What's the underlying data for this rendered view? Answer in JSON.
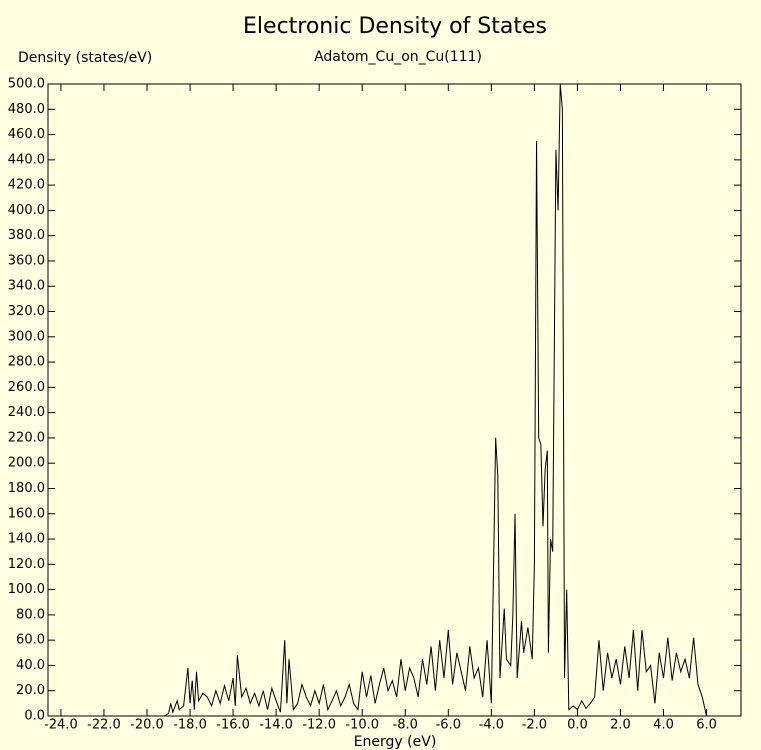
{
  "chart_data": {
    "type": "line",
    "title": "Electronic Density of States",
    "subtitle": "Adatom_Cu_on_Cu(111)",
    "y_label": "Density (states/eV)",
    "x_label": "Energy (eV)",
    "xlim": [
      -24.6,
      7.6
    ],
    "ylim": [
      0,
      500
    ],
    "xticks": [
      {
        "value": -24,
        "label": "-24.0"
      },
      {
        "value": -22,
        "label": "-22.0"
      },
      {
        "value": -20,
        "label": "-20.0"
      },
      {
        "value": -18,
        "label": "-18.0"
      },
      {
        "value": -16,
        "label": "-16.0"
      },
      {
        "value": -14,
        "label": "-14.0"
      },
      {
        "value": -12,
        "label": "-12.0"
      },
      {
        "value": -10,
        "label": "-10.0"
      },
      {
        "value": -8,
        "label": "-8.0"
      },
      {
        "value": -6,
        "label": "-6.0"
      },
      {
        "value": -4,
        "label": "-4.0"
      },
      {
        "value": -2,
        "label": "-2.0"
      },
      {
        "value": 0,
        "label": "0.0"
      },
      {
        "value": 2,
        "label": "2.0"
      },
      {
        "value": 4,
        "label": "4.0"
      },
      {
        "value": 6,
        "label": "6.0"
      }
    ],
    "yticks": [
      {
        "value": 0,
        "label": "0.0"
      },
      {
        "value": 20,
        "label": "20.0"
      },
      {
        "value": 40,
        "label": "40.0"
      },
      {
        "value": 60,
        "label": "60.0"
      },
      {
        "value": 80,
        "label": "80.0"
      },
      {
        "value": 100,
        "label": "100.0"
      },
      {
        "value": 120,
        "label": "120.0"
      },
      {
        "value": 140,
        "label": "140.0"
      },
      {
        "value": 160,
        "label": "160.0"
      },
      {
        "value": 180,
        "label": "180.0"
      },
      {
        "value": 200,
        "label": "200.0"
      },
      {
        "value": 220,
        "label": "220.0"
      },
      {
        "value": 240,
        "label": "240.0"
      },
      {
        "value": 260,
        "label": "260.0"
      },
      {
        "value": 280,
        "label": "280.0"
      },
      {
        "value": 300,
        "label": "300.0"
      },
      {
        "value": 320,
        "label": "320.0"
      },
      {
        "value": 340,
        "label": "340.0"
      },
      {
        "value": 360,
        "label": "360.0"
      },
      {
        "value": 380,
        "label": "380.0"
      },
      {
        "value": 400,
        "label": "400.0"
      },
      {
        "value": 420,
        "label": "420.0"
      },
      {
        "value": 440,
        "label": "440.0"
      },
      {
        "value": 460,
        "label": "460.0"
      },
      {
        "value": 480,
        "label": "480.0"
      },
      {
        "value": 500,
        "label": "500.0"
      }
    ],
    "grid": false,
    "x": [
      -24.5,
      -19.2,
      -19.0,
      -18.9,
      -18.8,
      -18.6,
      -18.5,
      -18.3,
      -18.1,
      -18.0,
      -17.9,
      -17.8,
      -17.7,
      -17.6,
      -17.4,
      -17.2,
      -17.0,
      -16.8,
      -16.6,
      -16.4,
      -16.2,
      -16.0,
      -15.9,
      -15.8,
      -15.6,
      -15.4,
      -15.2,
      -15.0,
      -14.8,
      -14.6,
      -14.4,
      -14.2,
      -14.0,
      -13.8,
      -13.6,
      -13.5,
      -13.4,
      -13.2,
      -13.0,
      -12.8,
      -12.6,
      -12.4,
      -12.2,
      -12.0,
      -11.8,
      -11.6,
      -11.4,
      -11.2,
      -11.0,
      -10.8,
      -10.6,
      -10.4,
      -10.2,
      -10.0,
      -9.8,
      -9.6,
      -9.4,
      -9.2,
      -9.0,
      -8.8,
      -8.6,
      -8.4,
      -8.2,
      -8.0,
      -7.8,
      -7.6,
      -7.4,
      -7.2,
      -7.0,
      -6.8,
      -6.6,
      -6.4,
      -6.2,
      -6.0,
      -5.8,
      -5.6,
      -5.4,
      -5.2,
      -5.0,
      -4.8,
      -4.6,
      -4.4,
      -4.2,
      -4.0,
      -3.8,
      -3.7,
      -3.6,
      -3.4,
      -3.3,
      -3.1,
      -3.0,
      -2.9,
      -2.8,
      -2.6,
      -2.5,
      -2.3,
      -2.1,
      -2.0,
      -1.9,
      -1.8,
      -1.7,
      -1.6,
      -1.5,
      -1.4,
      -1.35,
      -1.25,
      -1.15,
      -1.0,
      -0.9,
      -0.8,
      -0.7,
      -0.6,
      -0.5,
      -0.4,
      -0.2,
      0.0,
      0.2,
      0.4,
      0.6,
      0.8,
      1.0,
      1.2,
      1.4,
      1.6,
      1.8,
      2.0,
      2.2,
      2.4,
      2.6,
      2.8,
      3.0,
      3.2,
      3.4,
      3.6,
      3.8,
      4.0,
      4.2,
      4.4,
      4.6,
      4.8,
      5.0,
      5.2,
      5.4,
      5.6,
      5.8,
      6.0,
      6.2
    ],
    "series": [
      {
        "color": "#000000",
        "values": [
          0,
          0,
          2,
          10,
          3,
          12,
          5,
          8,
          38,
          10,
          28,
          5,
          35,
          12,
          18,
          15,
          8,
          20,
          10,
          24,
          12,
          30,
          8,
          48,
          15,
          22,
          10,
          18,
          8,
          20,
          5,
          22,
          12,
          3,
          60,
          10,
          45,
          5,
          10,
          25,
          15,
          8,
          20,
          10,
          25,
          5,
          12,
          20,
          8,
          15,
          25,
          10,
          5,
          35,
          15,
          32,
          10,
          25,
          38,
          20,
          28,
          15,
          45,
          20,
          38,
          30,
          15,
          45,
          25,
          55,
          20,
          60,
          30,
          68,
          25,
          50,
          35,
          20,
          55,
          30,
          38,
          15,
          60,
          10,
          220,
          190,
          30,
          85,
          45,
          40,
          80,
          160,
          30,
          75,
          50,
          70,
          45,
          120,
          455,
          220,
          215,
          150,
          195,
          210,
          50,
          140,
          130,
          448,
          400,
          500,
          480,
          30,
          100,
          5,
          8,
          5,
          12,
          6,
          10,
          15,
          60,
          20,
          50,
          30,
          45,
          25,
          55,
          30,
          68,
          20,
          68,
          35,
          40,
          10,
          50,
          30,
          62,
          28,
          50,
          35,
          45,
          30,
          62,
          25,
          15,
          0,
          0
        ]
      }
    ]
  }
}
